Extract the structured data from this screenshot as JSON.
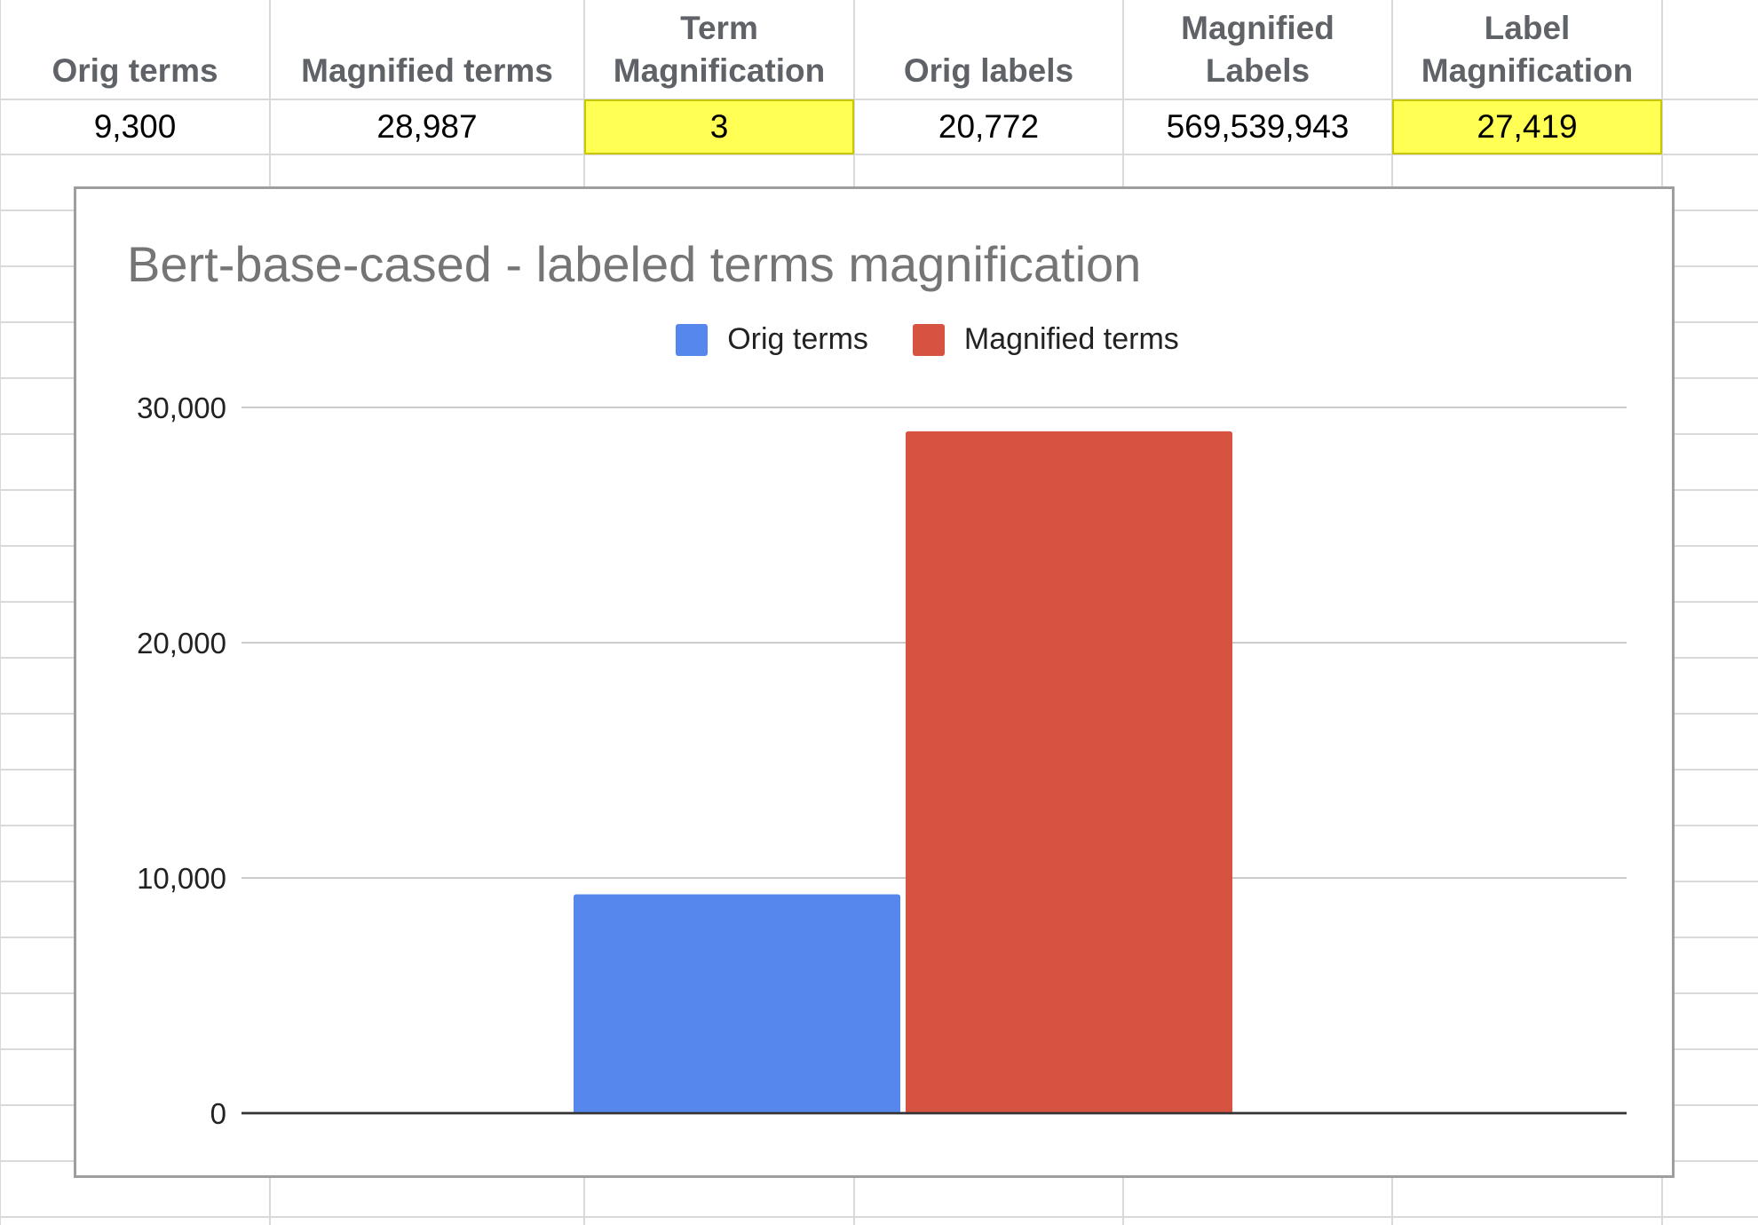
{
  "table": {
    "headers": [
      "Orig terms",
      "Magnified terms",
      "Term\nMagnification",
      "Orig labels",
      "Magnified\nLabels",
      "Label\nMagnification"
    ],
    "values": [
      "9,300",
      "28,987",
      "3",
      "20,772",
      "569,539,943",
      "27,419"
    ],
    "highlighted_columns": [
      2,
      5
    ],
    "highlight_color": "#ffff54"
  },
  "chart_data": {
    "type": "bar",
    "title": "Bert-base-cased - labeled terms magnification",
    "xlabel": "",
    "ylabel": "",
    "ylim": [
      0,
      30000
    ],
    "yticks": [
      0,
      10000,
      20000,
      30000
    ],
    "ytick_labels": [
      "0",
      "10,000",
      "20,000",
      "30,000"
    ],
    "grid": true,
    "legend_position": "top",
    "series": [
      {
        "name": "Orig terms",
        "values": [
          9300
        ],
        "color": "#5587ec"
      },
      {
        "name": "Magnified terms",
        "values": [
          28987
        ],
        "color": "#d65241"
      }
    ]
  }
}
